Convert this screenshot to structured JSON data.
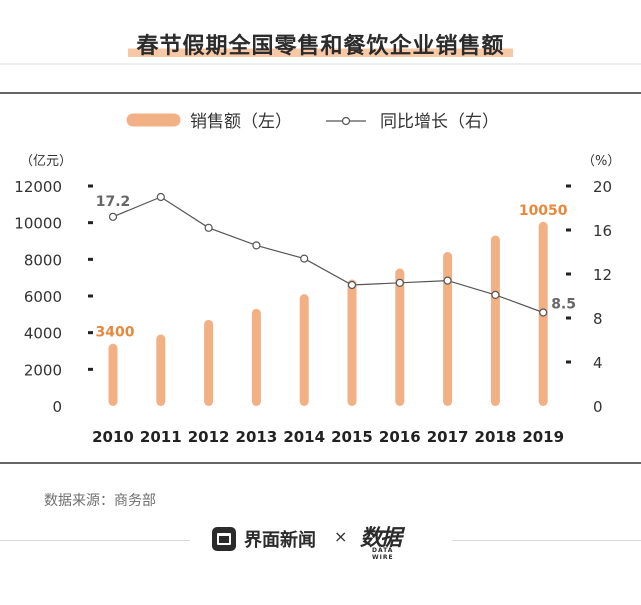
{
  "title": "春节假期全国零售和餐饮企业销售额",
  "legend": {
    "bar": "销售额（左）",
    "line": "同比增长（右）"
  },
  "y_left_unit": "（亿元）",
  "y_right_unit": "（%）",
  "source": "数据来源：商务部",
  "footer": {
    "brand": "界面新闻",
    "times": "×",
    "logo2": "数据",
    "logo2_sub": "DATA WIRE"
  },
  "colors": {
    "bar": "#f2b184",
    "line": "#555555",
    "highlight": "#e8883d",
    "text": "#333333"
  },
  "chart_data": {
    "type": "bar",
    "categories": [
      "2010",
      "2011",
      "2012",
      "2013",
      "2014",
      "2015",
      "2016",
      "2017",
      "2018",
      "2019"
    ],
    "series": [
      {
        "name": "销售额（左）",
        "type": "bar",
        "axis": "left",
        "values": [
          3400,
          3900,
          4700,
          5300,
          6100,
          6900,
          7500,
          8400,
          9300,
          10050
        ]
      },
      {
        "name": "同比增长（右）",
        "type": "line",
        "axis": "right",
        "values": [
          17.2,
          19.0,
          16.2,
          14.6,
          13.4,
          11.0,
          11.2,
          11.4,
          10.1,
          8.5
        ]
      }
    ],
    "data_labels": [
      {
        "series": 0,
        "index": 0,
        "text": "3400"
      },
      {
        "series": 0,
        "index": 9,
        "text": "10050"
      },
      {
        "series": 1,
        "index": 0,
        "text": "17.2"
      },
      {
        "series": 1,
        "index": 9,
        "text": "8.5"
      }
    ],
    "y_left": {
      "ticks": [
        0,
        2000,
        4000,
        6000,
        8000,
        10000,
        12000
      ],
      "lim": [
        0,
        12000
      ]
    },
    "y_right": {
      "ticks": [
        0,
        4,
        8,
        12,
        16,
        20
      ],
      "lim": [
        0,
        20
      ]
    },
    "grid": false,
    "legend_position": "top"
  }
}
